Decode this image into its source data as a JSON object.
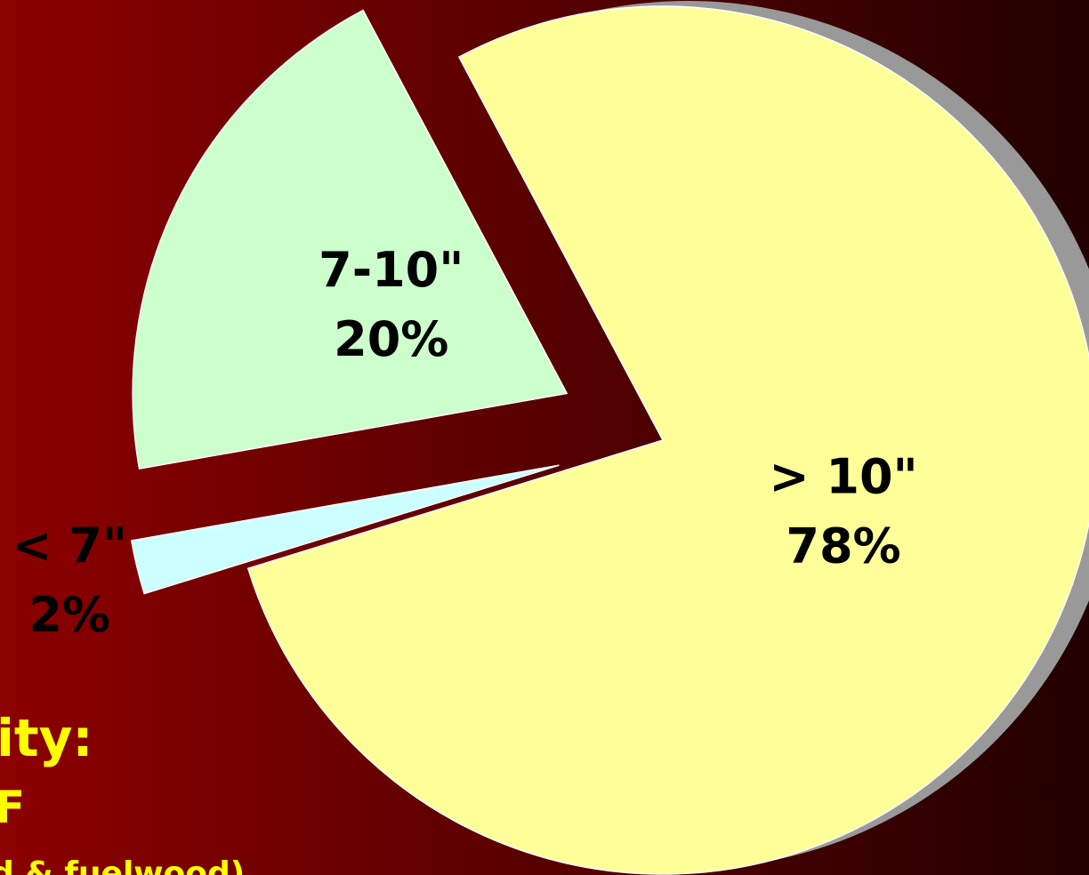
{
  "chart_data": {
    "type": "pie",
    "categories": [
      "> 10\"",
      "< 7\"",
      "7-10\""
    ],
    "values": [
      78,
      2,
      20
    ],
    "value_labels": [
      "78%",
      "2%",
      "20%"
    ],
    "colors": [
      "#ffff99",
      "#ccffff",
      "#ccffcc"
    ],
    "annotations": [
      "ity:",
      "F",
      "d & fuelwood)"
    ]
  }
}
